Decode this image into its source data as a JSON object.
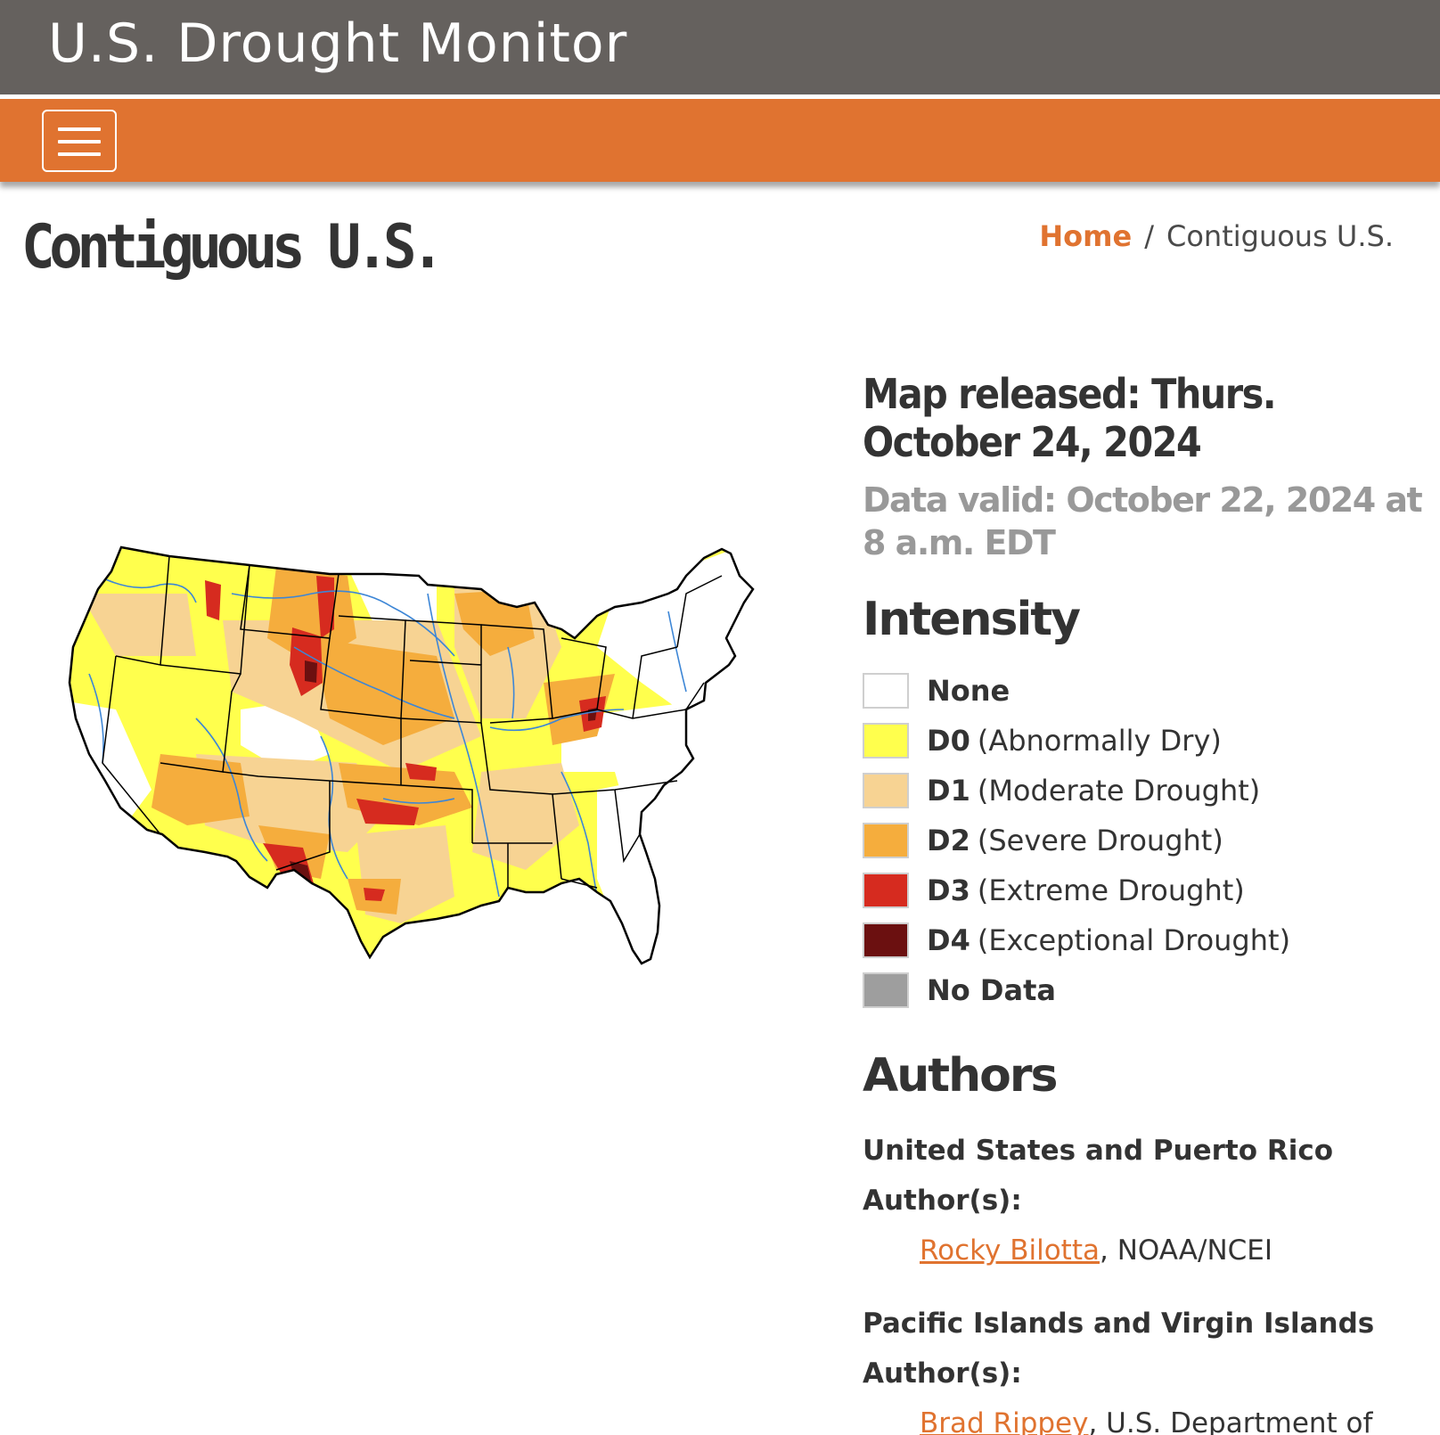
{
  "header": {
    "site_title": "U.S. Drought Monitor",
    "menu_icon": "hamburger-icon"
  },
  "page": {
    "title": "Contiguous U.S."
  },
  "breadcrumb": {
    "home": "Home",
    "separator": "/",
    "current": "Contiguous U.S."
  },
  "map_info": {
    "released": "Map released: Thurs. October 24, 2024",
    "valid": "Data valid: October 22, 2024 at 8 a.m. EDT"
  },
  "legend": {
    "title": "Intensity",
    "items": [
      {
        "code": "None",
        "desc": "",
        "color": "#ffffff"
      },
      {
        "code": "D0",
        "desc": "(Abnormally Dry)",
        "color": "#ffff4d"
      },
      {
        "code": "D1",
        "desc": "(Moderate Drought)",
        "color": "#f7d393"
      },
      {
        "code": "D2",
        "desc": "(Severe Drought)",
        "color": "#f5ad3d"
      },
      {
        "code": "D3",
        "desc": "(Extreme Drought)",
        "color": "#d62b1f"
      },
      {
        "code": "D4",
        "desc": "(Exceptional Drought)",
        "color": "#6b1010"
      },
      {
        "code": "No Data",
        "desc": "",
        "color": "#9e9e9e"
      }
    ]
  },
  "authors": {
    "title": "Authors",
    "groups": [
      {
        "label": "United States and Puerto Rico Author(s):",
        "name": "Rocky Bilotta",
        "affiliation": ", NOAA/NCEI"
      },
      {
        "label": "Pacific Islands and Virgin Islands Author(s):",
        "name": "Brad Rippey",
        "affiliation": ", U.S. Department of Agriculture"
      }
    ]
  },
  "colors": {
    "header_bg": "#65615e",
    "nav_bg": "#e07330",
    "accent": "#e07330"
  }
}
